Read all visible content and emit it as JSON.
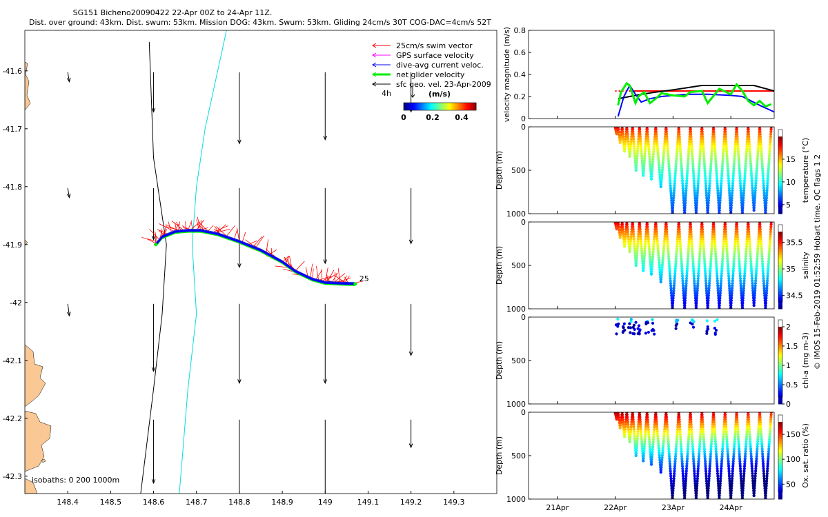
{
  "header": {
    "title_line1": "SG151 Bicheno20090422 22-Apr 00Z to 24-Apr 11Z.",
    "title_line2": "Dist. over ground: 43km. Dist. swum: 53km. Mission DOG: 43km. Swum: 53km. Gliding 24cm/s 30T COG-DAC=4cm/s 52T"
  },
  "footer_note": "© IMOS 15-Feb-2019 01:52:59 Hobart time. QC flags 1  2",
  "colors": {
    "swim_vector": "#ff0000",
    "gps_velocity": "#ff00ff",
    "dac": "#0000ff",
    "net_velocity": "#00ee00",
    "geo_velocity": "#000000",
    "isobath_0": "#000000",
    "isobath_200": "#00dddd",
    "land": "#fac895"
  },
  "chart_data": [
    {
      "id": "map",
      "type": "scatter",
      "xlim": [
        148.3,
        149.4
      ],
      "ylim": [
        -42.33,
        -41.53
      ],
      "xticks": [
        148.4,
        148.5,
        148.6,
        148.7,
        148.8,
        148.9,
        149,
        149.1,
        149.2,
        149.3
      ],
      "xtick_labels": [
        "148.4",
        "148.5",
        "148.6",
        "148.7",
        "148.8",
        "148.9",
        "149",
        "149.1",
        "149.2",
        "149.3"
      ],
      "yticks": [
        -41.6,
        -41.7,
        -41.8,
        -41.9,
        -42,
        -42.1,
        -42.2,
        -42.3
      ],
      "ytick_labels": [
        "-41.6",
        "-41.7",
        "-41.8",
        "-41.9",
        "-42",
        "-42.1",
        "-42.2",
        "-42.3"
      ],
      "legend": [
        {
          "label": "25cm/s swim vector",
          "color": "#ff0000"
        },
        {
          "label": "GPS surface velocity",
          "color": "#ff00ff"
        },
        {
          "label": "dive-avg current veloc.",
          "color": "#0000ff"
        },
        {
          "label": "net glider velocity",
          "color": "#00ee00"
        },
        {
          "label": "sfc geo. vel. 23-Apr-2009",
          "color": "#000000"
        }
      ],
      "legend_arrow_label": "4h",
      "colorbar": {
        "label": "(m/s)",
        "tick_labels": [
          "0",
          "0.2",
          "0.4"
        ],
        "ticks": [
          0,
          0.2,
          0.4
        ],
        "range": [
          0,
          0.5
        ]
      },
      "isobaths_label": "isobaths: 0   200   1000m",
      "track_end_label": "25",
      "isobath_0": [
        [
          148.57,
          -42.33
        ],
        [
          148.6,
          -42.15
        ],
        [
          148.62,
          -42.02
        ],
        [
          148.63,
          -41.9
        ],
        [
          148.6,
          -41.75
        ],
        [
          148.59,
          -41.55
        ]
      ],
      "isobath_200": [
        [
          148.66,
          -42.33
        ],
        [
          148.68,
          -42.15
        ],
        [
          148.7,
          -42.02
        ],
        [
          148.69,
          -41.9
        ],
        [
          148.7,
          -41.8
        ],
        [
          148.72,
          -41.7
        ],
        [
          148.77,
          -41.53
        ]
      ],
      "track": [
        [
          148.605,
          -41.9
        ],
        [
          148.62,
          -41.887
        ],
        [
          148.65,
          -41.878
        ],
        [
          148.68,
          -41.876
        ],
        [
          148.71,
          -41.876
        ],
        [
          148.75,
          -41.882
        ],
        [
          148.8,
          -41.895
        ],
        [
          148.85,
          -41.91
        ],
        [
          148.9,
          -41.93
        ],
        [
          148.93,
          -41.946
        ],
        [
          148.97,
          -41.96
        ],
        [
          149.0,
          -41.966
        ],
        [
          149.03,
          -41.967
        ],
        [
          149.07,
          -41.968
        ]
      ],
      "geo_arrows": [
        {
          "lon": 148.4,
          "lat": -41.6,
          "u": 0.002,
          "v": -0.012
        },
        {
          "lon": 148.6,
          "lat": -41.6,
          "u": 0.0,
          "v": -0.05
        },
        {
          "lon": 148.8,
          "lat": -41.6,
          "u": 0.0,
          "v": -0.09
        },
        {
          "lon": 149.0,
          "lat": -41.6,
          "u": 0.0,
          "v": -0.085
        },
        {
          "lon": 149.2,
          "lat": -41.6,
          "u": 0.0,
          "v": -0.05
        },
        {
          "lon": 148.4,
          "lat": -41.8,
          "u": 0.002,
          "v": -0.012
        },
        {
          "lon": 148.6,
          "lat": -41.8,
          "u": 0.0,
          "v": -0.065
        },
        {
          "lon": 148.8,
          "lat": -41.8,
          "u": 0.0,
          "v": -0.1
        },
        {
          "lon": 149.0,
          "lat": -41.8,
          "u": 0.0,
          "v": -0.095
        },
        {
          "lon": 149.2,
          "lat": -41.8,
          "u": 0.0,
          "v": -0.07
        },
        {
          "lon": 148.4,
          "lat": -42.0,
          "u": 0.002,
          "v": -0.015
        },
        {
          "lon": 148.6,
          "lat": -42.0,
          "u": 0.0,
          "v": -0.085
        },
        {
          "lon": 148.8,
          "lat": -42.0,
          "u": 0.0,
          "v": -0.1
        },
        {
          "lon": 149.0,
          "lat": -42.0,
          "u": 0.0,
          "v": -0.1
        },
        {
          "lon": 149.2,
          "lat": -42.0,
          "u": 0.0,
          "v": -0.065
        },
        {
          "lon": 148.6,
          "lat": -42.2,
          "u": 0.0,
          "v": -0.08
        },
        {
          "lon": 148.8,
          "lat": -42.2,
          "u": 0.0,
          "v": -0.1
        },
        {
          "lon": 149.0,
          "lat": -42.2,
          "u": 0.0,
          "v": -0.1
        },
        {
          "lon": 149.2,
          "lat": -42.2,
          "u": 0.0,
          "v": -0.035
        }
      ]
    },
    {
      "id": "velocity",
      "type": "line",
      "ylabel": "velocity magnitude (m/s)",
      "ylim": [
        0,
        0.8
      ],
      "yticks": [
        0,
        0.2,
        0.4,
        0.6,
        0.8
      ],
      "ytick_labels": [
        "0",
        "0.2",
        "0.4",
        "0.6",
        "0.8"
      ],
      "xlim": [
        20.5,
        24.75
      ],
      "series": [
        {
          "name": "mean glider velocity",
          "color": "#ff0000",
          "dashed": true,
          "x": [
            22.0,
            22.3
          ],
          "y": [
            0.25,
            0.25
          ]
        },
        {
          "name": "net glider velocity",
          "color": "#ff0000",
          "dashed": false,
          "x": [
            22.3,
            24.75
          ],
          "y": [
            0.25,
            0.25
          ]
        },
        {
          "name": "sfc velocity",
          "color": "#000000",
          "dashed": false,
          "x": [
            22.05,
            22.25,
            22.45,
            22.7,
            23.0,
            23.5,
            24.0,
            24.4,
            24.75
          ],
          "y": [
            0.18,
            0.2,
            0.22,
            0.24,
            0.26,
            0.3,
            0.3,
            0.3,
            0.25
          ]
        },
        {
          "name": "dive-avg current",
          "color": "#0000ff",
          "dashed": false,
          "x": [
            22.05,
            22.15,
            22.25,
            22.35,
            22.45,
            22.6,
            22.8,
            23.0,
            23.3,
            23.6,
            24.0,
            24.2,
            24.5,
            24.75
          ],
          "y": [
            0.02,
            0.2,
            0.3,
            0.22,
            0.15,
            0.18,
            0.2,
            0.21,
            0.22,
            0.22,
            0.21,
            0.2,
            0.12,
            0.06
          ]
        },
        {
          "name": "net glider velocity (gps)",
          "color": "#00ee00",
          "dashed": false,
          "x": [
            22.05,
            22.1,
            22.15,
            22.2,
            22.25,
            22.3,
            22.35,
            22.4,
            22.5,
            22.6,
            22.7,
            22.8,
            23.0,
            23.2,
            23.3,
            23.5,
            23.6,
            23.8,
            24.0,
            24.1,
            24.2,
            24.3,
            24.4,
            24.5,
            24.6,
            24.7
          ],
          "y": [
            0.12,
            0.24,
            0.28,
            0.32,
            0.3,
            0.22,
            0.14,
            0.2,
            0.24,
            0.14,
            0.18,
            0.23,
            0.21,
            0.2,
            0.24,
            0.25,
            0.14,
            0.27,
            0.22,
            0.31,
            0.25,
            0.16,
            0.12,
            0.16,
            0.11,
            0.13
          ]
        }
      ]
    },
    {
      "id": "temperature",
      "type": "scatter",
      "ylabel": "Depth (m)",
      "ylim": [
        0,
        1000
      ],
      "xlim": [
        20.5,
        24.75
      ],
      "cbar_label": "temperature (°C)",
      "cbar_range": [
        3,
        20
      ],
      "cbar_ticks": [
        5,
        10,
        15
      ],
      "cbar_tick_labels": [
        "5",
        "10",
        "15"
      ],
      "profile_start": 22.0,
      "cycles": [
        {
          "t0": 22.0,
          "t1": 22.05,
          "zmax": 80
        },
        {
          "t0": 22.05,
          "t1": 22.12,
          "zmax": 180
        },
        {
          "t0": 22.12,
          "t1": 22.2,
          "zmax": 280
        },
        {
          "t0": 22.2,
          "t1": 22.3,
          "zmax": 340
        },
        {
          "t0": 22.3,
          "t1": 22.42,
          "zmax": 500
        },
        {
          "t0": 22.42,
          "t1": 22.55,
          "zmax": 560
        },
        {
          "t0": 22.55,
          "t1": 22.7,
          "zmax": 600
        },
        {
          "t0": 22.7,
          "t1": 22.88,
          "zmax": 690
        },
        {
          "t0": 22.88,
          "t1": 23.1,
          "zmax": 990
        },
        {
          "t0": 23.1,
          "t1": 23.3,
          "zmax": 990
        },
        {
          "t0": 23.3,
          "t1": 23.5,
          "zmax": 990
        },
        {
          "t0": 23.5,
          "t1": 23.7,
          "zmax": 990
        },
        {
          "t0": 23.7,
          "t1": 23.9,
          "zmax": 990
        },
        {
          "t0": 23.9,
          "t1": 24.1,
          "zmax": 990
        },
        {
          "t0": 24.1,
          "t1": 24.3,
          "zmax": 990
        },
        {
          "t0": 24.3,
          "t1": 24.5,
          "zmax": 960
        },
        {
          "t0": 24.5,
          "t1": 24.7,
          "zmax": 990
        }
      ]
    },
    {
      "id": "salinity",
      "type": "scatter",
      "ylabel": "Depth (m)",
      "ylim": [
        0,
        1000
      ],
      "xlim": [
        20.5,
        24.75
      ],
      "cbar_label": "salinity",
      "cbar_range": [
        34.25,
        35.7
      ],
      "cbar_ticks": [
        34.5,
        35,
        35.5
      ],
      "cbar_tick_labels": [
        "34.5",
        "35",
        "35.5"
      ]
    },
    {
      "id": "chla",
      "type": "scatter",
      "ylabel": "Depth (m)",
      "ylim": [
        0,
        1000
      ],
      "xlim": [
        20.5,
        24.75
      ],
      "cbar_label": "chl-a (mg m-3)",
      "cbar_range": [
        0,
        2
      ],
      "cbar_ticks": [
        0,
        0.5,
        1,
        1.5,
        2
      ],
      "cbar_tick_labels": [
        "0",
        "0.5",
        "1",
        "1.5",
        "2"
      ]
    },
    {
      "id": "oxygen",
      "type": "scatter",
      "ylabel": "Depth (m)",
      "ylim": [
        0,
        1000
      ],
      "xlim": [
        20.5,
        24.75
      ],
      "cbar_label": "Ox. sat. ratio (%)",
      "cbar_range": [
        20,
        175
      ],
      "cbar_ticks": [
        50,
        100,
        150
      ],
      "cbar_tick_labels": [
        "50",
        "100",
        "150"
      ],
      "xticks": [
        21,
        22,
        23,
        24
      ],
      "xtick_labels": [
        "21Apr",
        "22Apr",
        "23Apr",
        "24Apr"
      ]
    }
  ],
  "depth_ticks": [
    0,
    500,
    1000
  ],
  "depth_tick_labels": [
    "0",
    "500",
    "1000"
  ]
}
